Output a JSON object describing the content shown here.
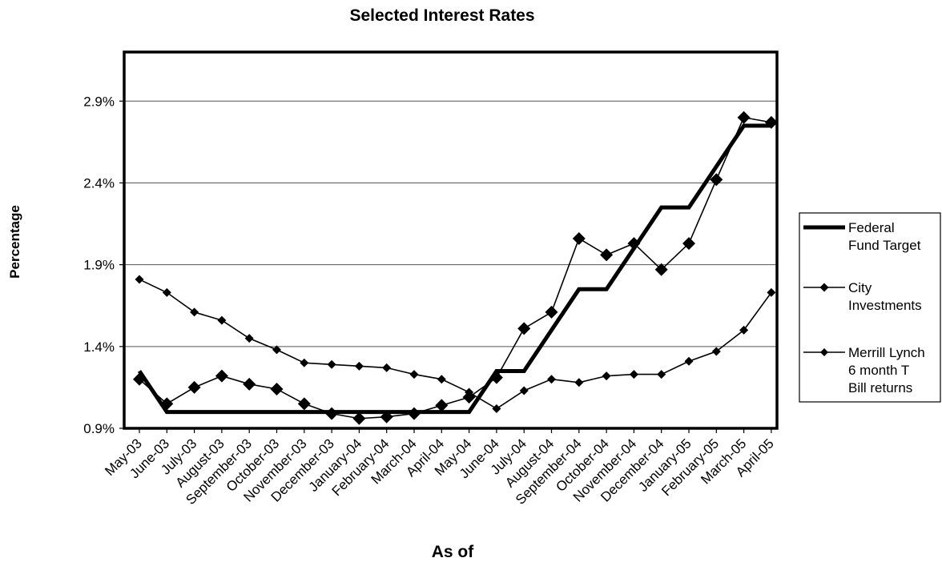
{
  "chart_data": {
    "type": "line",
    "title": "Selected Interest Rates",
    "xlabel": "As of",
    "ylabel": "Percentage",
    "ylim": [
      0.9,
      3.2
    ],
    "yticks": [
      "0.9%",
      "1.4%",
      "1.9%",
      "2.4%",
      "2.9%"
    ],
    "ytick_values": [
      0.9,
      1.4,
      1.9,
      2.4,
      2.9
    ],
    "grid": "horizontal",
    "legend_position": "right",
    "categories": [
      "May-03",
      "June-03",
      "July-03",
      "August-03",
      "September-03",
      "October-03",
      "November-03",
      "December-03",
      "January-04",
      "February-04",
      "March-04",
      "April-04",
      "May-04",
      "June-04",
      "July-04",
      "August-04",
      "September-04",
      "October-04",
      "November-04",
      "December-04",
      "January-05",
      "February-05",
      "March-05",
      "April-05"
    ],
    "series": [
      {
        "name": "Federal Fund Target",
        "color": "#000000",
        "line_width": 5,
        "marker": "none",
        "values": [
          1.25,
          1.0,
          1.0,
          1.0,
          1.0,
          1.0,
          1.0,
          1.0,
          1.0,
          1.0,
          1.0,
          1.0,
          1.0,
          1.25,
          1.25,
          1.5,
          1.75,
          1.75,
          2.0,
          2.25,
          2.25,
          2.5,
          2.75,
          2.75
        ]
      },
      {
        "name": "City Investments",
        "color": "#000000",
        "line_width": 1.6,
        "marker": "diamond-large",
        "values": [
          1.2,
          1.05,
          1.15,
          1.22,
          1.17,
          1.14,
          1.05,
          0.99,
          0.96,
          0.97,
          0.99,
          1.04,
          1.09,
          1.21,
          1.51,
          1.61,
          2.06,
          1.96,
          2.03,
          1.87,
          2.03,
          2.42,
          2.8,
          2.77
        ]
      },
      {
        "name": "Merrill Lynch 6 month T Bill returns",
        "color": "#000000",
        "line_width": 1.6,
        "marker": "diamond-small",
        "values": [
          1.81,
          1.73,
          1.61,
          1.56,
          1.45,
          1.38,
          1.3,
          1.29,
          1.28,
          1.27,
          1.23,
          1.2,
          1.12,
          1.02,
          1.13,
          1.2,
          1.18,
          1.22,
          1.23,
          1.23,
          1.31,
          1.37,
          1.5,
          1.73
        ]
      }
    ],
    "legend_lines": [
      [
        "Federal",
        "Fund Target"
      ],
      [
        "City",
        "Investments"
      ],
      [
        "Merrill Lynch",
        "6 month T",
        "Bill returns"
      ]
    ]
  }
}
